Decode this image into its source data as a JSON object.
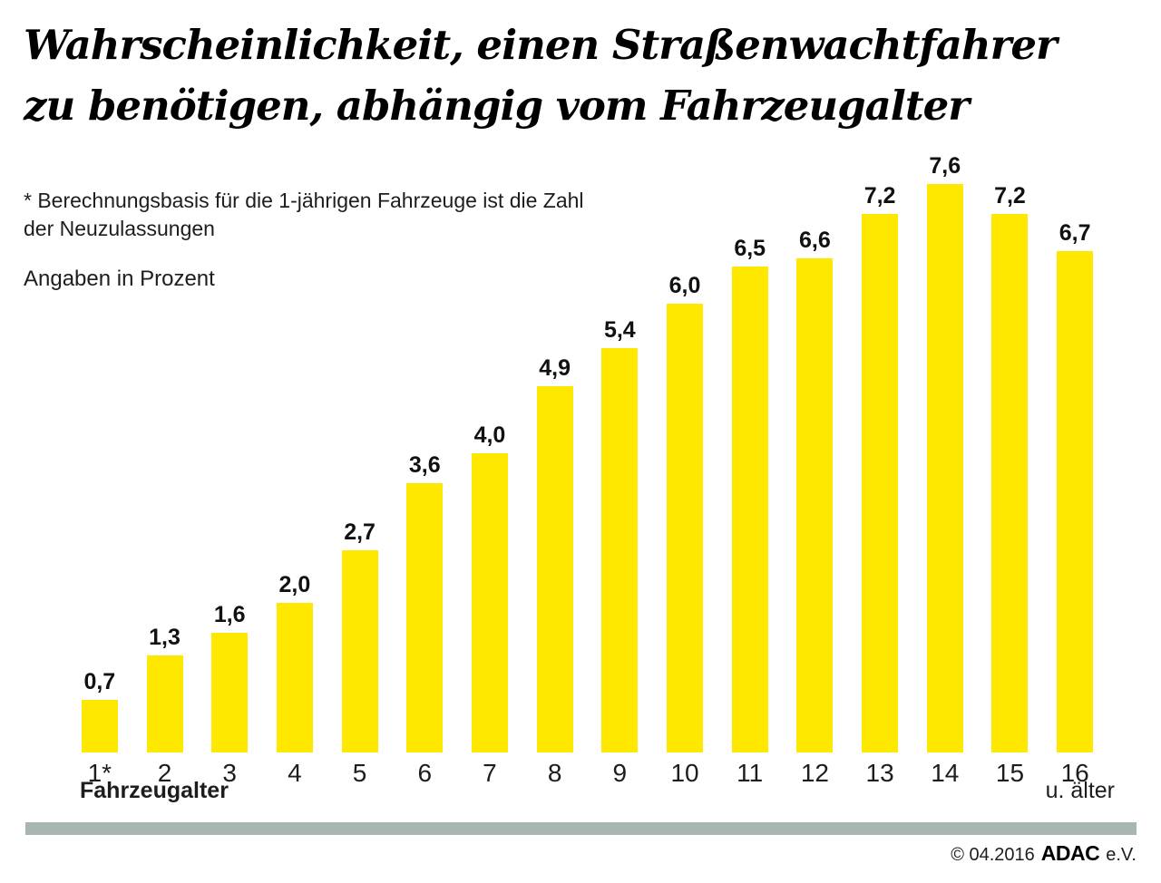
{
  "title": {
    "line1": "Wahrscheinlichkeit, einen Straßenwachtfahrer",
    "line2": "zu benötigen, abhängig vom Fahrzeugalter"
  },
  "notes": {
    "note_line1": "* Berechnungsbasis für die 1-jährigen Fahrzeuge ist die Zahl",
    "note_line2": "der Neuzulassungen",
    "unit_note": "Angaben in Prozent"
  },
  "chart_data": {
    "type": "bar",
    "title": "Wahrscheinlichkeit, einen Straßenwachtfahrer zu benötigen, abhängig vom Fahrzeugalter",
    "categories": [
      "1*",
      "2",
      "3",
      "4",
      "5",
      "6",
      "7",
      "8",
      "9",
      "10",
      "11",
      "12",
      "13",
      "14",
      "15",
      "16"
    ],
    "values": [
      0.7,
      1.3,
      1.6,
      2.0,
      2.7,
      3.6,
      4.0,
      4.9,
      5.4,
      6.0,
      6.5,
      6.6,
      7.2,
      7.6,
      7.2,
      6.7
    ],
    "value_labels": [
      "0,7",
      "1,3",
      "1,6",
      "2,0",
      "2,7",
      "3,6",
      "4,0",
      "4,9",
      "5,4",
      "6,0",
      "6,5",
      "6,6",
      "7,2",
      "7,6",
      "7,2",
      "6,7"
    ],
    "xlabel": "Fahrzeugalter",
    "last_category_suffix": "u. älter",
    "ylabel": "Angaben in Prozent",
    "ylim": [
      0,
      8
    ],
    "grid": false,
    "legend": false,
    "bar_color": "#ffe800"
  },
  "footer": {
    "copyright_prefix": "© 04.2016",
    "brand": "ADAC",
    "suffix": "e.V.",
    "divider_color": "#a9b5b0"
  }
}
